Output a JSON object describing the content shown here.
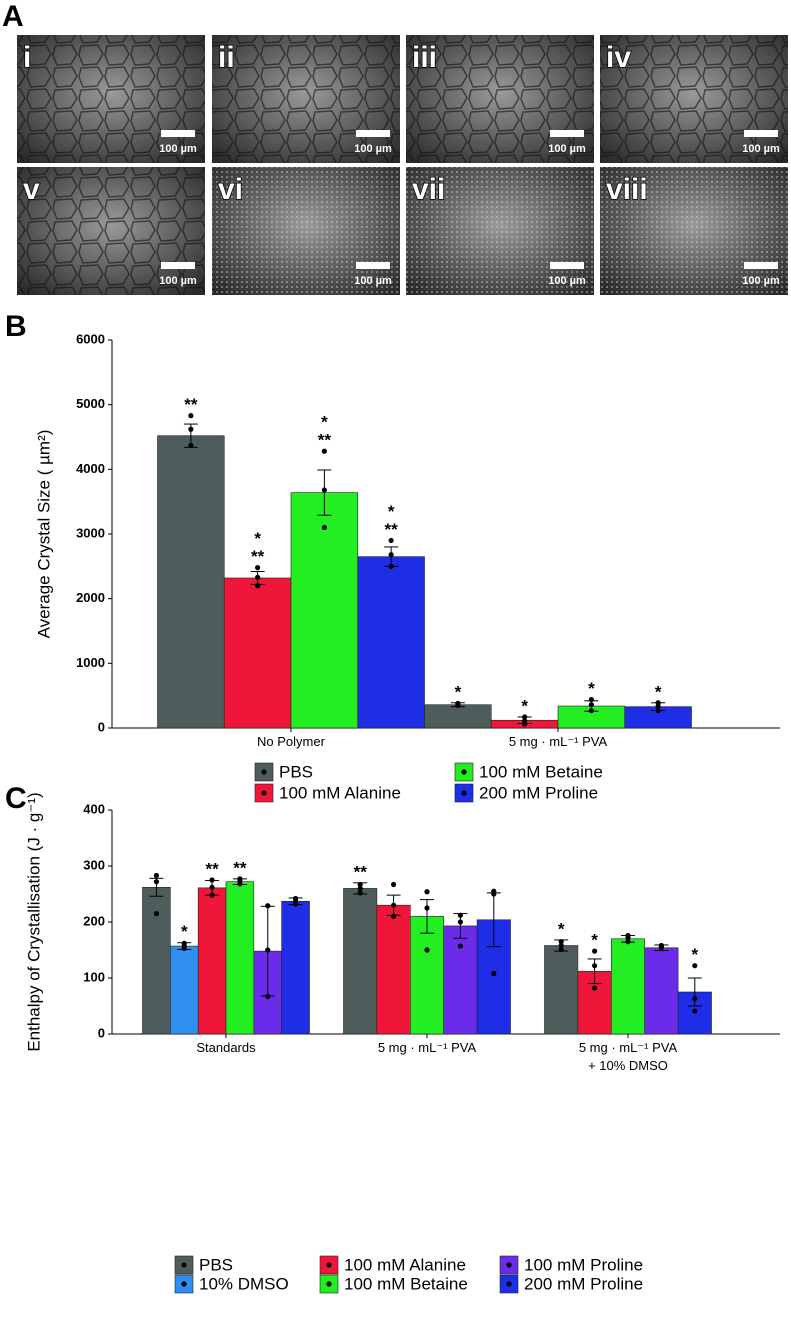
{
  "panel_a": {
    "label": "A",
    "images": [
      {
        "label": "i",
        "scale_bar": "100 µm"
      },
      {
        "label": "ii",
        "scale_bar": "100 µm"
      },
      {
        "label": "iii",
        "scale_bar": "100 µm"
      },
      {
        "label": "iv",
        "scale_bar": "100 µm"
      },
      {
        "label": "v",
        "scale_bar": "100 µm"
      },
      {
        "label": "vi",
        "scale_bar": "100 µm"
      },
      {
        "label": "vii",
        "scale_bar": "100 µm"
      },
      {
        "label": "viii",
        "scale_bar": "100 µm"
      }
    ]
  },
  "chart_data": [
    {
      "type": "bar",
      "panel_label": "B",
      "y_label": "Average Crystal Size ( µm²)",
      "categories": [
        "No Polymer",
        "5 mg · mL⁻¹ PVA"
      ],
      "ylim": [
        0,
        6000
      ],
      "yticks": [
        0,
        1000,
        2000,
        3000,
        4000,
        5000,
        6000
      ],
      "legend": "bottom",
      "series": [
        {
          "name": "PBS",
          "color": "#4f5c5c",
          "values": [
            4520,
            360
          ],
          "errors": [
            180,
            30
          ],
          "points": [
            [
              4370,
              4620,
              4830
            ],
            [
              350,
              370,
              380
            ]
          ],
          "significance": [
            [
              "**"
            ],
            [
              "*"
            ]
          ]
        },
        {
          "name": "100 mM Alanine",
          "color": "#f0163a",
          "values": [
            2320,
            120
          ],
          "errors": [
            100,
            50
          ],
          "points": [
            [
              2200,
              2330,
              2480
            ],
            [
              60,
              110,
              170
            ]
          ],
          "significance": [
            [
              "*",
              "**"
            ],
            [
              "*"
            ]
          ]
        },
        {
          "name": "100 mM Betaine",
          "color": "#22ee22",
          "values": [
            3640,
            340
          ],
          "errors": [
            350,
            80
          ],
          "points": [
            [
              3100,
              3680,
              4280
            ],
            [
              270,
              360,
              440
            ]
          ],
          "significance": [
            [
              "*",
              "**"
            ],
            [
              "*"
            ]
          ]
        },
        {
          "name": "200 mM Proline",
          "color": "#1e2de6",
          "values": [
            2650,
            330
          ],
          "errors": [
            150,
            60
          ],
          "points": [
            [
              2500,
              2680,
              2900
            ],
            [
              270,
              340,
              390
            ]
          ],
          "significance": [
            [
              "*",
              "**"
            ],
            [
              "*"
            ]
          ]
        }
      ]
    },
    {
      "type": "bar",
      "panel_label": "C",
      "y_label": "Enthalpy of Crystallisation (J · g⁻¹)",
      "categories": [
        "Standards",
        "5 mg · mL⁻¹ PVA",
        "5 mg · mL⁻¹ PVA\n+ 10% DMSO"
      ],
      "ylim": [
        0,
        400
      ],
      "yticks": [
        0,
        100,
        200,
        300,
        400
      ],
      "legend": "bottom",
      "series": [
        {
          "name": "PBS",
          "color": "#4f5c5c",
          "values": [
            262,
            260,
            158
          ],
          "errors": [
            16,
            10,
            10
          ],
          "points": [
            [
              215,
              272,
              283
            ],
            [
              252,
              260,
              267
            ],
            [
              151,
              158,
              165
            ]
          ],
          "significance": [
            null,
            [
              "**"
            ],
            [
              "*"
            ]
          ]
        },
        {
          "name": "10% DMSO",
          "color": "#2f8ff0",
          "values": [
            157,
            null,
            null
          ],
          "errors": [
            6,
            null,
            null
          ],
          "points": [
            [
              153,
              158,
              162
            ],
            null,
            null
          ],
          "significance": [
            [
              "*"
            ],
            null,
            null
          ]
        },
        {
          "name": "100 mM Alanine",
          "color": "#f0163a",
          "values": [
            261,
            230,
            112
          ],
          "errors": [
            13,
            18,
            22
          ],
          "points": [
            [
              248,
              262,
              275
            ],
            [
              210,
              230,
              267
            ],
            [
              82,
              122,
              148
            ]
          ],
          "significance": [
            [
              "**"
            ],
            null,
            [
              "*"
            ]
          ]
        },
        {
          "name": "100 mM Betaine",
          "color": "#22ee22",
          "values": [
            272,
            210,
            170
          ],
          "errors": [
            5,
            30,
            6
          ],
          "points": [
            [
              268,
              274,
              277
            ],
            [
              150,
              225,
              254
            ],
            [
              165,
              172,
              176
            ]
          ],
          "significance": [
            [
              "**"
            ],
            null,
            null
          ]
        },
        {
          "name": "100 mM Proline",
          "color": "#6b2cea",
          "values": [
            148,
            193,
            154
          ],
          "errors": [
            80,
            22,
            5
          ],
          "points": [
            [
              67,
              150,
              229
            ],
            [
              157,
              200,
              212
            ],
            [
              154,
              156,
              158
            ]
          ],
          "significance": [
            null,
            null,
            null
          ]
        },
        {
          "name": "200 mM Proline",
          "color": "#1e2de6",
          "values": [
            237,
            204,
            75
          ],
          "errors": [
            6,
            48,
            25
          ],
          "points": [
            [
              232,
              237,
              242
            ],
            [
              108,
              250,
              255
            ],
            [
              41,
              63,
              122
            ]
          ],
          "significance": [
            null,
            null,
            [
              "*"
            ]
          ]
        }
      ]
    }
  ]
}
